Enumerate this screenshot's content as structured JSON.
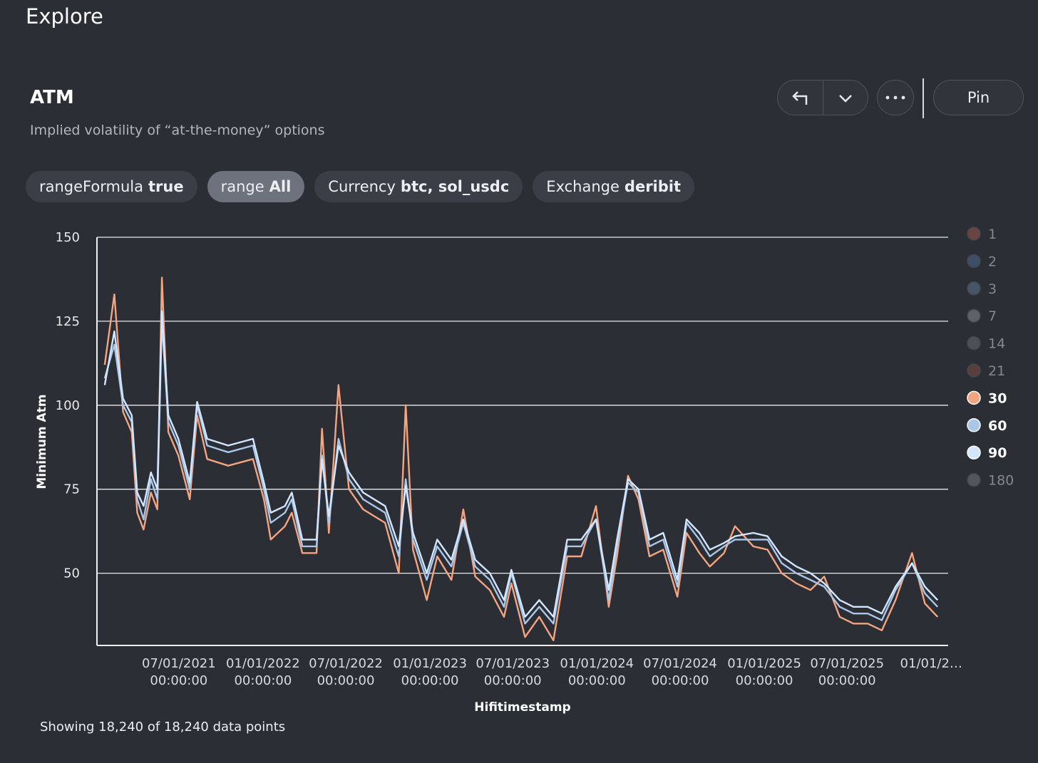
{
  "header": {
    "title": "Explore"
  },
  "panel": {
    "title": "ATM",
    "subtitle": "Implied volatility of “at-the-money” options",
    "pin_button": "Pin"
  },
  "filters": [
    {
      "key": "rangeFormula",
      "value": "true"
    },
    {
      "key": "range",
      "value": "All"
    },
    {
      "key": "Currency",
      "value": "btc, sol_usdc"
    },
    {
      "key": "Exchange",
      "value": "deribit"
    }
  ],
  "footer": {
    "text": "Showing 18,240 of 18,240 data points"
  },
  "chart_data": {
    "type": "line",
    "y_label": "Minimum Atm",
    "x_label": "Hifitimestamp",
    "ylim": [
      28.5,
      150
    ],
    "yticks": [
      50,
      75,
      100,
      125,
      150
    ],
    "grid": true,
    "xlim": [
      "2021-01-03",
      "2026-02-07"
    ],
    "xticks": [
      {
        "value": "2021-07-01",
        "label": "07/01/2021 00:00:00"
      },
      {
        "value": "2022-01-01",
        "label": "01/01/2022 00:00:00"
      },
      {
        "value": "2022-07-01",
        "label": "07/01/2022 00:00:00"
      },
      {
        "value": "2023-01-01",
        "label": "01/01/2023 00:00:00"
      },
      {
        "value": "2023-07-01",
        "label": "07/01/2023 00:00:00"
      },
      {
        "value": "2024-01-01",
        "label": "01/01/2024 00:00:00"
      },
      {
        "value": "2024-07-01",
        "label": "07/01/2024 00:00:00"
      },
      {
        "value": "2025-01-01",
        "label": "01/01/2025 00:00:00"
      },
      {
        "value": "2025-07-01",
        "label": "07/01/2025 00:00:00"
      },
      {
        "value": "2026-01-01",
        "label": "01/01/2…"
      }
    ],
    "legend_position": "right",
    "x": [
      "2021-01-20",
      "2021-02-10",
      "2021-03-01",
      "2021-03-20",
      "2021-04-01",
      "2021-04-15",
      "2021-05-01",
      "2021-05-15",
      "2021-05-25",
      "2021-06-08",
      "2021-06-30",
      "2021-07-25",
      "2021-08-10",
      "2021-09-01",
      "2021-10-17",
      "2021-12-10",
      "2022-01-03",
      "2022-01-18",
      "2022-02-18",
      "2022-03-05",
      "2022-03-28",
      "2022-04-28",
      "2022-05-10",
      "2022-05-25",
      "2022-06-15",
      "2022-07-08",
      "2022-08-08",
      "2022-09-25",
      "2022-10-25",
      "2022-11-09",
      "2022-11-25",
      "2022-12-25",
      "2023-01-17",
      "2023-02-17",
      "2023-03-15",
      "2023-04-10",
      "2023-05-12",
      "2023-06-12",
      "2023-06-28",
      "2023-07-28",
      "2023-08-28",
      "2023-09-28",
      "2023-10-28",
      "2023-11-28",
      "2023-12-30",
      "2024-01-27",
      "2024-02-14",
      "2024-03-09",
      "2024-04-01",
      "2024-04-25",
      "2024-05-25",
      "2024-06-25",
      "2024-07-15",
      "2024-08-12",
      "2024-09-04",
      "2024-10-05",
      "2024-10-29",
      "2024-12-08",
      "2025-01-08",
      "2025-02-08",
      "2025-03-12",
      "2025-04-12",
      "2025-05-12",
      "2025-06-15",
      "2025-07-15",
      "2025-08-15",
      "2025-09-15",
      "2025-10-15",
      "2025-11-20",
      "2025-12-18",
      "2026-01-15"
    ],
    "series": [
      {
        "name": "1",
        "color": "#a0564e",
        "visible": false
      },
      {
        "name": "2",
        "color": "#4d6a8e",
        "visible": false
      },
      {
        "name": "3",
        "color": "#5d7594",
        "visible": false
      },
      {
        "name": "7",
        "color": "#8a8c90",
        "visible": false
      },
      {
        "name": "14",
        "color": "#6a6e74",
        "visible": false
      },
      {
        "name": "21",
        "color": "#7e4e44",
        "visible": false
      },
      {
        "name": "30",
        "color": "#f4a47f",
        "visible": true,
        "values": [
          112,
          133,
          98,
          92,
          68,
          63,
          74,
          69,
          138,
          92,
          85,
          72,
          97,
          84,
          82,
          84,
          72,
          60,
          64,
          68,
          56,
          56,
          93,
          62,
          106,
          75,
          69,
          65,
          50,
          100,
          57,
          42,
          55,
          48,
          69,
          49,
          45,
          37,
          47,
          31,
          37,
          30,
          55,
          55,
          70,
          40,
          55,
          79,
          72,
          55,
          57,
          43,
          62,
          56,
          52,
          56,
          64,
          58,
          57,
          50,
          47,
          45,
          49,
          37,
          35,
          35,
          33,
          42,
          56,
          41,
          37
        ]
      },
      {
        "name": "60",
        "color": "#a9c7ea",
        "visible": true,
        "values": [
          108,
          118,
          100,
          95,
          72,
          66,
          78,
          72,
          125,
          95,
          88,
          75,
          100,
          88,
          86,
          88,
          75,
          65,
          68,
          72,
          58,
          58,
          85,
          65,
          90,
          78,
          72,
          68,
          55,
          78,
          60,
          48,
          58,
          52,
          65,
          52,
          48,
          40,
          50,
          35,
          40,
          35,
          58,
          58,
          66,
          42,
          58,
          77,
          74,
          58,
          60,
          46,
          65,
          60,
          55,
          58,
          60,
          60,
          60,
          53,
          50,
          48,
          46,
          40,
          38,
          38,
          36,
          45,
          53,
          44,
          40
        ]
      },
      {
        "name": "90",
        "color": "#d2e7ff",
        "visible": true,
        "values": [
          106,
          122,
          102,
          97,
          74,
          70,
          80,
          75,
          128,
          97,
          90,
          77,
          101,
          90,
          88,
          90,
          77,
          68,
          70,
          74,
          60,
          60,
          84,
          67,
          88,
          80,
          74,
          70,
          58,
          76,
          62,
          50,
          60,
          54,
          66,
          54,
          50,
          42,
          51,
          37,
          42,
          37,
          60,
          60,
          66,
          45,
          60,
          78,
          75,
          60,
          62,
          48,
          66,
          62,
          57,
          59,
          61,
          62,
          61,
          55,
          52,
          50,
          47,
          42,
          40,
          40,
          38,
          46,
          53,
          46,
          42
        ]
      },
      {
        "name": "180",
        "color": "#75787d",
        "visible": false
      }
    ]
  }
}
